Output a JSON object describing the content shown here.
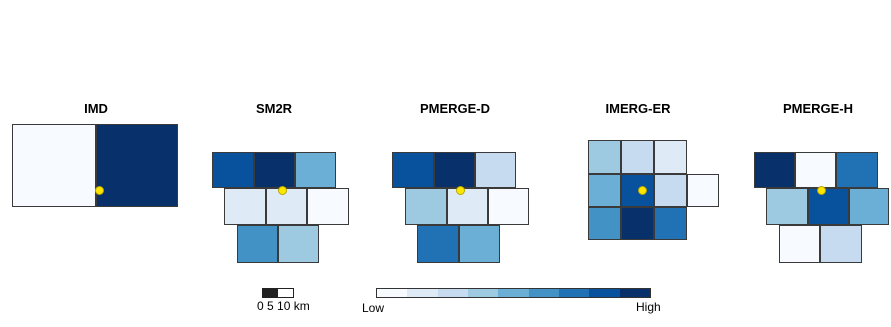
{
  "palette": [
    "#f7fbff",
    "#deebf7",
    "#c6dbef",
    "#9ecae1",
    "#6baed6",
    "#4292c6",
    "#2171b5",
    "#08519c",
    "#08306b"
  ],
  "panels": [
    {
      "title": "IMD",
      "cells": [
        {
          "level": 0
        },
        {
          "level": 8
        }
      ]
    },
    {
      "title": "SM2R",
      "cells": [
        {
          "level": 7
        },
        {
          "level": 8
        },
        {
          "level": 4
        },
        {
          "level": 1
        },
        {
          "level": 1
        },
        {
          "level": 0
        },
        {
          "level": 5
        },
        {
          "level": 3
        }
      ]
    },
    {
      "title": "PMERGE-D",
      "cells": [
        {
          "level": 7
        },
        {
          "level": 8
        },
        {
          "level": 2
        },
        {
          "level": 3
        },
        {
          "level": 1
        },
        {
          "level": 0
        },
        {
          "level": 6
        },
        {
          "level": 4
        }
      ]
    },
    {
      "title": "IMERG-ER",
      "cells": [
        {
          "level": 3
        },
        {
          "level": 2
        },
        {
          "level": 1
        },
        {
          "level": 4
        },
        {
          "level": 7
        },
        {
          "level": 2
        },
        {
          "level": 0
        },
        {
          "level": 5
        },
        {
          "level": 8
        },
        {
          "level": 6
        }
      ]
    },
    {
      "title": "PMERGE-H",
      "cells": [
        {
          "level": 8
        },
        {
          "level": 0
        },
        {
          "level": 6
        },
        {
          "level": 3
        },
        {
          "level": 7
        },
        {
          "level": 4
        },
        {
          "level": 0
        },
        {
          "level": 2
        }
      ]
    }
  ],
  "legend": {
    "low_label": "Low",
    "high_label": "High"
  },
  "scale": {
    "ticks_label": "0  5  10 km"
  }
}
